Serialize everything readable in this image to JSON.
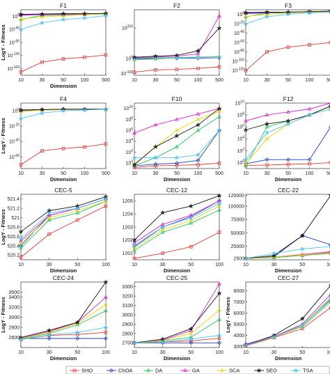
{
  "colors": {
    "SHO": "#e53935",
    "ChOA": "#1f3fbf",
    "DA": "#22c55e",
    "GA": "#e11fd4",
    "SCA": "#e6d400",
    "SEO": "#111111",
    "TSA": "#4fc3f7"
  },
  "legend": [
    "SHO",
    "ChOA",
    "DA",
    "GA",
    "SCA",
    "SEO",
    "TSA"
  ],
  "chart_data": [
    {
      "type": "line",
      "title": "F1",
      "xlabel": "Dimension",
      "ylabel": "LogY - Fitness",
      "categories": [
        "10",
        "30",
        "50",
        "100",
        "500"
      ],
      "scale": "log",
      "ylim": [
        -180,
        20
      ],
      "yticks": [
        0,
        -40,
        -80,
        -120,
        -160
      ],
      "ytick_labels": [
        "10^0",
        "10^-40",
        "10^-80",
        "10^-120",
        "10^-160"
      ],
      "series": [
        {
          "name": "SHO",
          "values": [
            -170,
            -140,
            -130,
            -125,
            -118
          ]
        },
        {
          "name": "ChOA",
          "values": [
            4,
            5,
            6,
            7,
            8
          ]
        },
        {
          "name": "DA",
          "values": [
            -10,
            3,
            4,
            5,
            7
          ]
        },
        {
          "name": "GA",
          "values": [
            3,
            5,
            6,
            7,
            9
          ]
        },
        {
          "name": "SCA",
          "values": [
            -8,
            -2,
            2,
            5,
            8
          ]
        },
        {
          "name": "SEO",
          "values": [
            6,
            7,
            8,
            8,
            9
          ]
        },
        {
          "name": "TSA",
          "values": [
            -40,
            -20,
            -10,
            -5,
            2
          ]
        }
      ]
    },
    {
      "type": "line",
      "title": "F2",
      "xlabel": "",
      "ylabel": "",
      "categories": [
        "10",
        "30",
        "50",
        "100",
        "500"
      ],
      "scale": "log",
      "ylim": [
        -110,
        320
      ],
      "yticks": [
        200,
        0,
        -100
      ],
      "ytick_labels": [
        "10^200",
        "10^0",
        "10^-100"
      ],
      "series": [
        {
          "name": "SHO",
          "values": [
            -90,
            -75,
            -72,
            -65,
            -55
          ]
        },
        {
          "name": "ChOA",
          "values": [
            -2,
            0,
            1,
            2,
            5
          ]
        },
        {
          "name": "DA",
          "values": [
            2,
            4,
            6,
            10,
            12
          ]
        },
        {
          "name": "GA",
          "values": [
            5,
            10,
            15,
            30,
            280
          ]
        },
        {
          "name": "SCA",
          "values": [
            -10,
            -5,
            3,
            10,
            15
          ]
        },
        {
          "name": "SEO",
          "values": [
            8,
            15,
            20,
            50,
            200
          ]
        },
        {
          "name": "TSA",
          "values": [
            -8,
            -2,
            3,
            8,
            12
          ]
        }
      ]
    },
    {
      "type": "line",
      "title": "F3",
      "xlabel": "",
      "ylabel": "",
      "categories": [
        "10",
        "30",
        "50",
        "100",
        "500"
      ],
      "scale": "log",
      "ylim": [
        -130,
        10
      ],
      "yticks": [
        0,
        -20,
        -40,
        -60,
        -80,
        -100,
        -120
      ],
      "ytick_labels": [
        "10^0",
        "10^-20",
        "10^-40",
        "10^-60",
        "10^-80",
        "10^-100",
        "10^-120"
      ],
      "series": [
        {
          "name": "SHO",
          "values": [
            -120,
            -80,
            -70,
            -65,
            -60
          ]
        },
        {
          "name": "ChOA",
          "values": [
            2,
            3,
            4,
            5,
            6
          ]
        },
        {
          "name": "DA",
          "values": [
            -5,
            3,
            4,
            5,
            6
          ]
        },
        {
          "name": "GA",
          "values": [
            3,
            4,
            5,
            6,
            7
          ]
        },
        {
          "name": "SCA",
          "values": [
            -4,
            0,
            3,
            5,
            6
          ]
        },
        {
          "name": "SEO",
          "values": [
            4,
            5,
            5,
            6,
            7
          ]
        },
        {
          "name": "TSA",
          "values": [
            -20,
            -5,
            0,
            3,
            5
          ]
        }
      ]
    },
    {
      "type": "line",
      "title": "F4",
      "xlabel": "Dimension",
      "ylabel": "LogY - Fitness",
      "categories": [
        "10",
        "30",
        "50",
        "100",
        "500"
      ],
      "scale": "log",
      "ylim": [
        -75,
        10
      ],
      "yticks": [
        0,
        -20,
        -40,
        -60
      ],
      "ytick_labels": [
        "10^0",
        "10^-20",
        "10^-40",
        "10^-60"
      ],
      "series": [
        {
          "name": "SHO",
          "values": [
            -70,
            -52,
            -49,
            -47,
            -43
          ]
        },
        {
          "name": "ChOA",
          "values": [
            1,
            1.5,
            2,
            2,
            2
          ]
        },
        {
          "name": "DA",
          "values": [
            0,
            1,
            1.5,
            2,
            2
          ]
        },
        {
          "name": "GA",
          "values": [
            0.5,
            1.5,
            2,
            2,
            2
          ]
        },
        {
          "name": "SCA",
          "values": [
            -1,
            1,
            1.5,
            2,
            2
          ]
        },
        {
          "name": "SEO",
          "values": [
            1,
            1.5,
            2,
            2,
            2
          ]
        },
        {
          "name": "TSA",
          "values": [
            -10,
            -3,
            0,
            1,
            2
          ]
        }
      ]
    },
    {
      "type": "line",
      "title": "F10",
      "xlabel": "Dimension",
      "ylabel": "",
      "categories": [
        "10",
        "30",
        "50",
        "100",
        "500"
      ],
      "scale": "log",
      "ylim": [
        -1,
        11
      ],
      "yticks": [
        10,
        8,
        6,
        4,
        2,
        0
      ],
      "ytick_labels": [
        "10^10",
        "10^8",
        "10^6",
        "10^4",
        "10^2",
        "10^0"
      ],
      "series": [
        {
          "name": "SHO",
          "values": [
            -0.8,
            -0.5,
            -0.4,
            -0.3,
            0
          ]
        },
        {
          "name": "ChOA",
          "values": [
            -0.5,
            -0.2,
            0,
            0.5,
            6
          ]
        },
        {
          "name": "DA",
          "values": [
            -0.5,
            1,
            3,
            6,
            8.5
          ]
        },
        {
          "name": "GA",
          "values": [
            5.5,
            7,
            8,
            9,
            10
          ]
        },
        {
          "name": "SCA",
          "values": [
            -0.2,
            3,
            6,
            8,
            9.5
          ]
        },
        {
          "name": "SEO",
          "values": [
            -0.3,
            3,
            5,
            7,
            10
          ]
        },
        {
          "name": "TSA",
          "values": [
            1,
            1,
            1,
            1.5,
            6
          ]
        }
      ]
    },
    {
      "type": "line",
      "title": "F12",
      "xlabel": "Dimension",
      "ylabel": "",
      "categories": [
        "10",
        "30",
        "50",
        "100",
        "500"
      ],
      "scale": "log",
      "ylim": [
        -1,
        10
      ],
      "yticks": [
        10,
        8,
        6,
        4,
        2,
        0
      ],
      "ytick_labels": [
        "10^10",
        "10^8",
        "10^6",
        "10^4",
        "10^2",
        "10^0"
      ],
      "series": [
        {
          "name": "SHO",
          "values": [
            -0.5,
            -0.4,
            -0.3,
            -0.2,
            0
          ]
        },
        {
          "name": "ChOA",
          "values": [
            -0.2,
            0.5,
            0.5,
            0.5,
            6
          ]
        },
        {
          "name": "DA",
          "values": [
            -0.5,
            6,
            7,
            8,
            9.5
          ]
        },
        {
          "name": "GA",
          "values": [
            7,
            8,
            8.5,
            9,
            10
          ]
        },
        {
          "name": "SCA",
          "values": [
            -0.2,
            4,
            6.5,
            8,
            9
          ]
        },
        {
          "name": "SEO",
          "values": [
            5.5,
            6.5,
            7,
            8,
            9.5
          ]
        },
        {
          "name": "TSA",
          "values": [
            0.5,
            5,
            6.5,
            8,
            9
          ]
        }
      ]
    },
    {
      "type": "line",
      "title": "CEC-5",
      "xlabel": "Dimension",
      "ylabel": "LogY - Fitness",
      "categories": [
        "10",
        "30",
        "50",
        "100"
      ],
      "scale": "linear",
      "ylim": [
        520.1,
        521.5
      ],
      "yticks": [
        520.2,
        520.4,
        520.6,
        520.8,
        521,
        521.2,
        521.4
      ],
      "ytick_labels": [
        "520.2",
        "520.4",
        "520.6",
        "520.8",
        "521",
        "521.2",
        "521.4"
      ],
      "series": [
        {
          "name": "SHO",
          "values": [
            520.15,
            520.65,
            520.95,
            521.25
          ]
        },
        {
          "name": "ChOA",
          "values": [
            520.4,
            521.05,
            521.2,
            521.4
          ]
        },
        {
          "name": "DA",
          "values": [
            520.35,
            520.95,
            521.1,
            521.35
          ]
        },
        {
          "name": "GA",
          "values": [
            520.5,
            521.05,
            521.2,
            521.4
          ]
        },
        {
          "name": "SCA",
          "values": [
            520.45,
            521.0,
            521.15,
            521.35
          ]
        },
        {
          "name": "SEO",
          "values": [
            520.7,
            521.15,
            521.25,
            521.45
          ]
        },
        {
          "name": "TSA",
          "values": [
            520.55,
            521.1,
            521.2,
            521.4
          ]
        }
      ]
    },
    {
      "type": "line",
      "title": "CEC-12",
      "xlabel": "Dimension",
      "ylabel": "",
      "categories": [
        "10",
        "30",
        "50",
        "100"
      ],
      "scale": "linear",
      "ylim": [
        1200.5,
        1205.5
      ],
      "yticks": [
        1201,
        1202,
        1203,
        1204,
        1205
      ],
      "ytick_labels": [
        "1201",
        "1202",
        "1203",
        "1204",
        "1205"
      ],
      "series": [
        {
          "name": "SHO",
          "values": [
            1200.6,
            1201.0,
            1201.5,
            1202.6
          ]
        },
        {
          "name": "ChOA",
          "values": [
            1201.5,
            1203.0,
            1203.8,
            1205.0
          ]
        },
        {
          "name": "DA",
          "values": [
            1201.2,
            1202.6,
            1203.3,
            1204.3
          ]
        },
        {
          "name": "GA",
          "values": [
            1201.8,
            1203.2,
            1203.9,
            1205.0
          ]
        },
        {
          "name": "SCA",
          "values": [
            1201.4,
            1202.8,
            1203.5,
            1204.6
          ]
        },
        {
          "name": "SEO",
          "values": [
            1202.0,
            1204.1,
            1204.6,
            1205.4
          ]
        },
        {
          "name": "TSA",
          "values": [
            1201.6,
            1203.0,
            1203.7,
            1204.8
          ]
        }
      ]
    },
    {
      "type": "line",
      "title": "CEC-22",
      "xlabel": "Dimension",
      "ylabel": "",
      "categories": [
        "10",
        "30",
        "50",
        "100"
      ],
      "scale": "linear",
      "ylim": [
        0,
        122000
      ],
      "yticks": [
        2500,
        25000,
        50000,
        75000,
        100000,
        120000
      ],
      "ytick_labels": [
        "2500",
        "25000",
        "50000",
        "75000",
        "100000",
        "120000"
      ],
      "series": [
        {
          "name": "SHO",
          "values": [
            2500,
            5000,
            8000,
            14000
          ]
        },
        {
          "name": "ChOA",
          "values": [
            2500,
            6000,
            45000,
            28000
          ]
        },
        {
          "name": "DA",
          "values": [
            2500,
            4000,
            8000,
            12000
          ]
        },
        {
          "name": "GA",
          "values": [
            2500,
            5000,
            10000,
            15000
          ]
        },
        {
          "name": "SCA",
          "values": [
            2500,
            5000,
            9000,
            13000
          ]
        },
        {
          "name": "SEO",
          "values": [
            2500,
            8000,
            45000,
            120000
          ]
        },
        {
          "name": "TSA",
          "values": [
            2500,
            12000,
            20000,
            25000
          ]
        }
      ]
    },
    {
      "type": "line",
      "title": "CEC-24",
      "xlabel": "Dimension",
      "ylabel": "LogY - Fitness",
      "categories": [
        "10",
        "30",
        "50",
        "100"
      ],
      "scale": "linear",
      "ylim": [
        2400,
        3700
      ],
      "yticks": [
        2600,
        2800,
        3000,
        3200,
        3400,
        3500
      ],
      "ytick_labels": [
        "2600",
        "2800",
        "3000",
        "3200",
        "3400",
        "3500"
      ],
      "series": [
        {
          "name": "SHO",
          "values": [
            2560,
            2640,
            2660,
            2700
          ]
        },
        {
          "name": "ChOA",
          "values": [
            2580,
            2580,
            2580,
            2580
          ]
        },
        {
          "name": "DA",
          "values": [
            2570,
            2680,
            2850,
            3130
          ]
        },
        {
          "name": "GA",
          "values": [
            2590,
            2720,
            2900,
            3400
          ]
        },
        {
          "name": "SCA",
          "values": [
            2580,
            2700,
            2880,
            3250
          ]
        },
        {
          "name": "SEO",
          "values": [
            2600,
            2740,
            2900,
            3700
          ]
        },
        {
          "name": "TSA",
          "values": [
            2560,
            2650,
            2700,
            2800
          ]
        }
      ]
    },
    {
      "type": "line",
      "title": "CEC-25",
      "xlabel": "Dimension",
      "ylabel": "",
      "categories": [
        "10",
        "30",
        "50",
        "100"
      ],
      "scale": "linear",
      "ylim": [
        2650,
        3350
      ],
      "yticks": [
        2700,
        2800,
        2900,
        3000,
        3100,
        3200,
        3300
      ],
      "ytick_labels": [
        "2700",
        "2800",
        "2900",
        "3000",
        "3100",
        "3200",
        "3300"
      ],
      "series": [
        {
          "name": "SHO",
          "values": [
            2700,
            2710,
            2720,
            2750
          ]
        },
        {
          "name": "ChOA",
          "values": [
            2700,
            2700,
            2700,
            2700
          ]
        },
        {
          "name": "DA",
          "values": [
            2700,
            2720,
            2760,
            2950
          ]
        },
        {
          "name": "GA",
          "values": [
            2700,
            2730,
            2830,
            3330
          ]
        },
        {
          "name": "SCA",
          "values": [
            2700,
            2725,
            2800,
            3050
          ]
        },
        {
          "name": "SEO",
          "values": [
            2700,
            2740,
            2850,
            3230
          ]
        },
        {
          "name": "TSA",
          "values": [
            2700,
            2710,
            2740,
            2780
          ]
        }
      ]
    },
    {
      "type": "line",
      "title": "CEC-27",
      "xlabel": "Dimension",
      "ylabel": "LogY - Fitness",
      "categories": [
        "10",
        "30",
        "50",
        "100"
      ],
      "scale": "linear",
      "ylim": [
        2900,
        8800
      ],
      "yticks": [
        3000,
        4000,
        5000,
        6000,
        7000,
        8000
      ],
      "ytick_labels": [
        "3000",
        "4000",
        "5000",
        "6000",
        "7000",
        "8000"
      ],
      "series": [
        {
          "name": "SHO",
          "values": [
            3050,
            3800,
            4600,
            6500
          ]
        },
        {
          "name": "ChOA",
          "values": [
            3200,
            3900,
            4900,
            7200
          ]
        },
        {
          "name": "DA",
          "values": [
            3100,
            3850,
            4800,
            7000
          ]
        },
        {
          "name": "GA",
          "values": [
            3150,
            3900,
            5000,
            7700
          ]
        },
        {
          "name": "SCA",
          "values": [
            3100,
            3850,
            4850,
            7300
          ]
        },
        {
          "name": "SEO",
          "values": [
            3100,
            4000,
            5500,
            8500
          ]
        },
        {
          "name": "TSA",
          "values": [
            3100,
            3870,
            4900,
            7400
          ]
        }
      ]
    }
  ]
}
